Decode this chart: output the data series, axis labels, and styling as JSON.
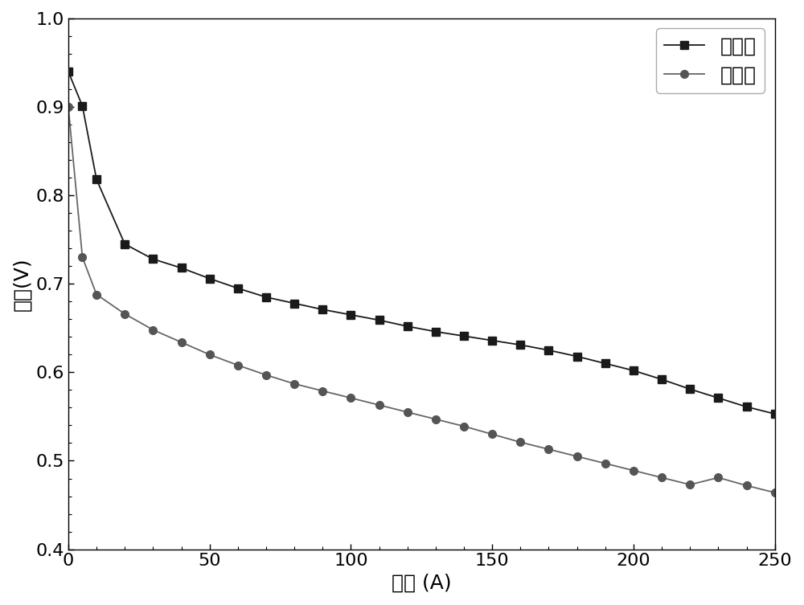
{
  "after_x": [
    0,
    5,
    10,
    20,
    30,
    40,
    50,
    60,
    70,
    80,
    90,
    100,
    110,
    120,
    130,
    140,
    150,
    160,
    170,
    180,
    190,
    200,
    210,
    220,
    230,
    240,
    250
  ],
  "after_y": [
    0.94,
    0.901,
    0.818,
    0.745,
    0.728,
    0.718,
    0.706,
    0.695,
    0.685,
    0.678,
    0.671,
    0.665,
    0.659,
    0.652,
    0.646,
    0.641,
    0.636,
    0.631,
    0.625,
    0.618,
    0.61,
    0.602,
    0.592,
    0.581,
    0.571,
    0.561,
    0.553
  ],
  "before_x": [
    0,
    5,
    10,
    20,
    30,
    40,
    50,
    60,
    70,
    80,
    90,
    100,
    110,
    120,
    130,
    140,
    150,
    160,
    170,
    180,
    190,
    200,
    210,
    220,
    230,
    240,
    250
  ],
  "before_y": [
    0.9,
    0.73,
    0.688,
    0.666,
    0.648,
    0.634,
    0.62,
    0.608,
    0.597,
    0.587,
    0.579,
    0.571,
    0.563,
    0.555,
    0.547,
    0.539,
    0.53,
    0.521,
    0.513,
    0.505,
    0.497,
    0.489,
    0.481,
    0.473,
    0.481,
    0.472,
    0.464
  ],
  "after_label": "处理后",
  "before_label": "处理前",
  "xlabel": "电流 (A)",
  "ylabel": "电压(V)",
  "xlim": [
    0,
    250
  ],
  "ylim": [
    0.4,
    1.0
  ],
  "line_color_after": "#1a1a1a",
  "line_color_before": "#666666",
  "marker_after_face": "#1a1a1a",
  "marker_before_face": "#555555",
  "background_color": "#ffffff",
  "legend_fontsize": 18,
  "axis_fontsize": 18,
  "tick_fontsize": 16
}
